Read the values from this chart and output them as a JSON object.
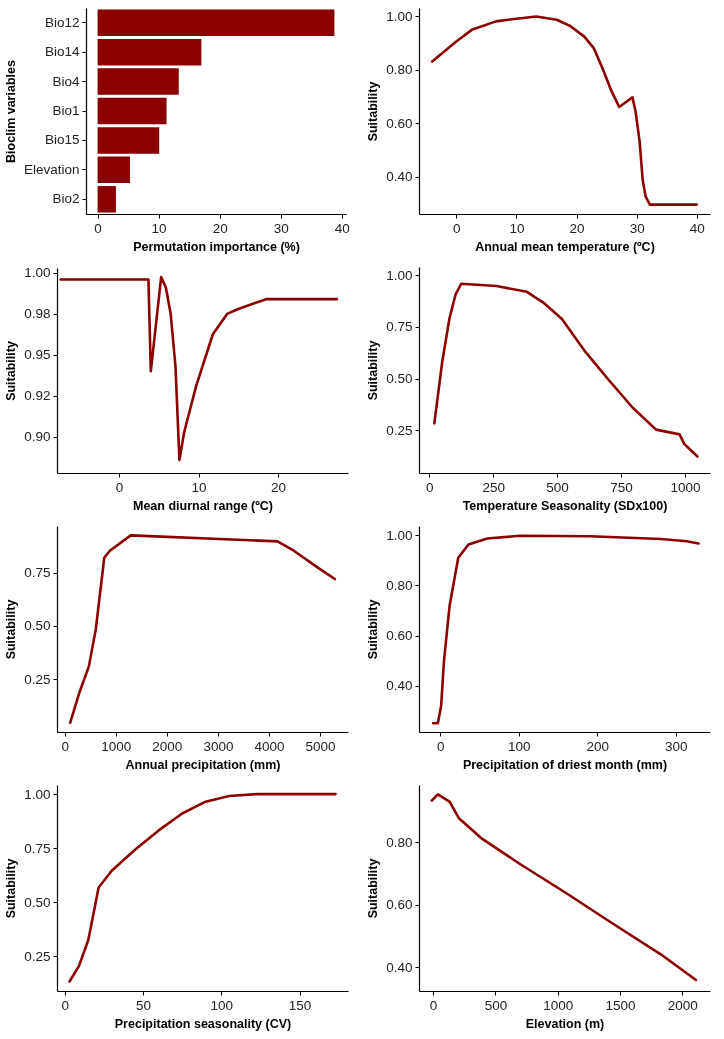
{
  "chart_data": [
    {
      "type": "bar",
      "orientation": "horizontal",
      "categories": [
        "Bio12",
        "Bio14",
        "Bio4",
        "Bio1",
        "Bio15",
        "Elevation",
        "Bio2"
      ],
      "values": [
        38.8,
        17.0,
        13.3,
        11.3,
        10.1,
        5.3,
        3.0
      ],
      "color": "#8b0000",
      "xlim": [
        -1.9,
        40.7
      ],
      "xticks": [
        0,
        10,
        20,
        30,
        40
      ],
      "xlabel": "Permutation importance (%)",
      "ylabel": "Bioclim variables",
      "grid": false
    },
    {
      "type": "line",
      "x": [
        -4.0,
        0,
        2.7,
        6.6,
        10,
        13.3,
        16.7,
        19,
        21.3,
        22.9,
        24.4,
        25.8,
        27.1,
        27.9,
        29.3,
        29.8,
        30.5,
        31,
        31.5,
        32.2,
        40
      ],
      "values": [
        0.83,
        0.905,
        0.95,
        0.98,
        0.99,
        0.998,
        0.986,
        0.962,
        0.923,
        0.879,
        0.8,
        0.72,
        0.66,
        0.673,
        0.696,
        0.646,
        0.53,
        0.388,
        0.325,
        0.295,
        0.295
      ],
      "color": "#8b0000",
      "xlim": [
        -6.2,
        42.2
      ],
      "xticks": [
        0,
        10,
        20,
        30,
        40
      ],
      "ylim": [
        0.26,
        1.03
      ],
      "yticks": [
        {
          "value": 0.4,
          "label": "0.40"
        },
        {
          "value": 0.6,
          "label": "0.60"
        },
        {
          "value": 0.8,
          "label": "0.80"
        },
        {
          "value": 1,
          "label": "1.00"
        }
      ],
      "xlabel": "Annual mean temperature (ºC)",
      "ylabel": "Suitability",
      "grid": false
    },
    {
      "type": "line",
      "x": [
        -7.35,
        3.7,
        4.0,
        4.7,
        5.3,
        5.9,
        6.5,
        7.1,
        7.6,
        8.2,
        9.7,
        11.8,
        13.6,
        15,
        18.5,
        27.4
      ],
      "values": [
        0.996,
        0.996,
        0.94,
        0.971,
        0.9975,
        0.991,
        0.975,
        0.943,
        0.886,
        0.903,
        0.931,
        0.9626,
        0.975,
        0.978,
        0.984,
        0.984
      ],
      "color": "#8b0000",
      "xlim": [
        -7.8,
        28.8
      ],
      "xticks": [
        0,
        10,
        20
      ],
      "ylim": [
        0.878,
        1.003
      ],
      "yticks": [
        {
          "value": 0.9,
          "label": "0.90"
        },
        {
          "value": 0.925,
          "label": "0.92"
        },
        {
          "value": 0.95,
          "label": "0.95"
        },
        {
          "value": 0.975,
          "label": "0.98"
        },
        {
          "value": 1,
          "label": "1.00"
        }
      ],
      "xlabel": "Mean diurnal range (ºC)",
      "ylabel": "Suitability",
      "grid": false
    },
    {
      "type": "line",
      "x": [
        20,
        51,
        79,
        103,
        125,
        263,
        382,
        446,
        519,
        611,
        703,
        795,
        887,
        979,
        997,
        1049
      ],
      "values": [
        0.283,
        0.583,
        0.79,
        0.907,
        0.959,
        0.948,
        0.92,
        0.868,
        0.788,
        0.629,
        0.492,
        0.36,
        0.253,
        0.23,
        0.184,
        0.123
      ],
      "color": "#8b0000",
      "xlim": [
        -40,
        1098
      ],
      "xticks": [
        0,
        250,
        500,
        750,
        1000
      ],
      "ylim": [
        0.043,
        1.04
      ],
      "yticks": [
        {
          "value": 0.25,
          "label": "0.25"
        },
        {
          "value": 0.5,
          "label": "0.50"
        },
        {
          "value": 0.75,
          "label": "0.75"
        },
        {
          "value": 1,
          "label": "1.00"
        }
      ],
      "xlabel": "Temperature Seasonality (SDx100)",
      "ylabel": "Suitability",
      "grid": false
    },
    {
      "type": "line",
      "x": [
        109,
        292,
        474,
        611,
        775,
        884,
        1294,
        4166,
        4485,
        4941,
        5287
      ],
      "values": [
        0.046,
        0.19,
        0.31,
        0.487,
        0.82,
        0.853,
        0.925,
        0.897,
        0.853,
        0.776,
        0.72
      ],
      "color": "#8b0000",
      "xlim": [
        -150,
        5546
      ],
      "xticks": [
        0,
        1000,
        2000,
        3000,
        4000,
        5000
      ],
      "ylim": [
        0.002,
        0.969
      ],
      "yticks": [
        {
          "value": 0.25,
          "label": "0.25"
        },
        {
          "value": 0.5,
          "label": "0.50"
        },
        {
          "value": 0.75,
          "label": "0.75"
        }
      ],
      "xlabel": "Annual precipitation (mm)",
      "ylabel": "Suitability",
      "grid": false
    },
    {
      "type": "line",
      "x": [
        -9,
        -3,
        1.2,
        4.8,
        12,
        23,
        36,
        60,
        102,
        191,
        281,
        314,
        329
      ],
      "values": [
        0.25,
        0.25,
        0.32,
        0.498,
        0.72,
        0.91,
        0.963,
        0.987,
        0.998,
        0.996,
        0.985,
        0.976,
        0.967
      ],
      "color": "#8b0000",
      "xlim": [
        -27,
        343.5
      ],
      "xticks": [
        0,
        100,
        200,
        300
      ],
      "ylim": [
        0.215,
        1.037
      ],
      "yticks": [
        {
          "value": 0.4,
          "label": "0.40"
        },
        {
          "value": 0.6,
          "label": "0.60"
        },
        {
          "value": 0.8,
          "label": "0.80"
        },
        {
          "value": 1,
          "label": "1.00"
        }
      ],
      "xlabel": "Precipitation of driest month (mm)",
      "ylabel": "Suitability",
      "grid": false
    },
    {
      "type": "line",
      "x": [
        3,
        9,
        15,
        21.6,
        30,
        45,
        60,
        75,
        90,
        105,
        123,
        173
      ],
      "values": [
        0.133,
        0.204,
        0.325,
        0.568,
        0.645,
        0.744,
        0.832,
        0.91,
        0.965,
        0.991,
        1.0,
        1.0
      ],
      "color": "#8b0000",
      "xlim": [
        -5,
        181
      ],
      "xticks": [
        0,
        50,
        100,
        150
      ],
      "ylim": [
        0.089,
        1.042
      ],
      "yticks": [
        {
          "value": 0.25,
          "label": "0.25"
        },
        {
          "value": 0.5,
          "label": "0.50"
        },
        {
          "value": 0.75,
          "label": "0.75"
        },
        {
          "value": 1,
          "label": "1.00"
        }
      ],
      "xlabel": "Precipitation seasonality (CV)",
      "ylabel": "Suitability",
      "grid": false
    },
    {
      "type": "line",
      "x": [
        -10,
        38,
        132,
        207,
        395,
        697,
        1073,
        1450,
        1827,
        2109
      ],
      "values": [
        0.932,
        0.952,
        0.929,
        0.876,
        0.81,
        0.73,
        0.636,
        0.538,
        0.442,
        0.36
      ],
      "color": "#8b0000",
      "xlim": [
        -113,
        2222
      ],
      "xticks": [
        0,
        500,
        1000,
        1500,
        2000
      ],
      "ylim": [
        0.325,
        0.982
      ],
      "yticks": [
        {
          "value": 0.4,
          "label": "0.40"
        },
        {
          "value": 0.6,
          "label": "0.60"
        },
        {
          "value": 0.8,
          "label": "0.80"
        }
      ],
      "xlabel": "Elevation (m)",
      "ylabel": "Suitability",
      "grid": false
    }
  ]
}
